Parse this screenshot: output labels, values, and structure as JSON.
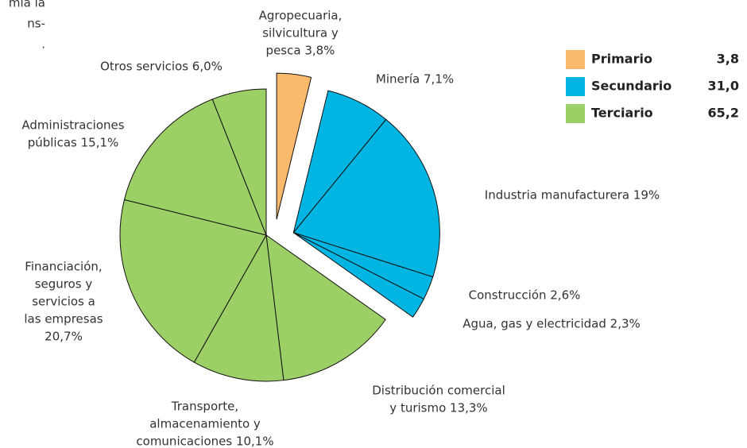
{
  "chart_data": {
    "type": "pie",
    "fragments": [
      "mía la",
      "ns-",
      "."
    ],
    "labels": [
      [
        "Agropecuaria,",
        "silvicultura y",
        "pesca 3,8%"
      ],
      [
        "Minería 7,1%"
      ],
      [
        "Industria manufacturera 19%"
      ],
      [
        "Construcción 2,6%"
      ],
      [
        "Agua, gas y electricidad 2,3%"
      ],
      [
        "Distribución comercial",
        "y turismo 13,3%"
      ],
      [
        "Transporte,",
        "almacenamiento y",
        "comunicaciones 10,1%"
      ],
      [
        "Financiación,",
        "seguros y",
        "servicios a",
        "las empresas",
        "20,7%"
      ],
      [
        "Administraciones",
        "públicas 15,1%"
      ],
      [
        "Otros servicios 6,0%"
      ]
    ],
    "values": [
      3.8,
      7.1,
      19,
      2.6,
      2.3,
      13.3,
      10.1,
      20.7,
      15.1,
      6.0
    ],
    "colors": [
      "#fbb96b",
      "#00b5e2",
      "#00b5e2",
      "#00b5e2",
      "#00b5e2",
      "#9ccf65",
      "#9ccf65",
      "#9ccf65",
      "#9ccf65",
      "#9ccf65"
    ],
    "legend": [
      {
        "name": "Primario",
        "color": "#fbb96b",
        "value": 3.8,
        "value_label": "3,8"
      },
      {
        "name": "Secundario",
        "color": "#00b5e2",
        "value": 31.0,
        "value_label": "31,0"
      },
      {
        "name": "Terciario",
        "color": "#9ccf65",
        "value": 65.2,
        "value_label": "65,2"
      }
    ]
  }
}
